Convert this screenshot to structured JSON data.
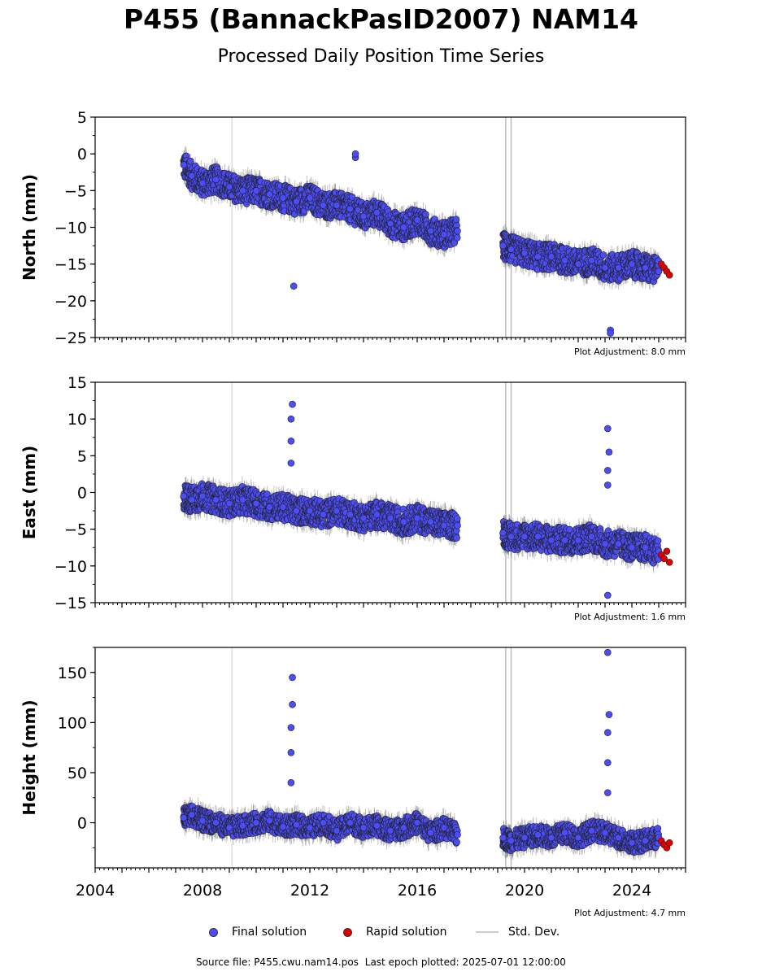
{
  "title": "P455 (BannackPasID2007) NAM14",
  "subtitle": "Processed Daily Position Time Series",
  "legend": {
    "final": "Final solution",
    "rapid": "Rapid solution",
    "stddev": "Std. Dev."
  },
  "colors": {
    "final": "#4c4cff",
    "rapid": "#e00000",
    "stddev": "#bdbdbd"
  },
  "footer": {
    "source": "Source file: P455.cwu.nam14.pos",
    "last_epoch": "Last epoch plotted: 2025-07-01 12:00:00"
  },
  "chart_data": [
    {
      "type": "scatter",
      "ylabel": "North (mm)",
      "xlim": [
        2004.0,
        2026.0
      ],
      "ylim": [
        -25,
        5
      ],
      "yticks": [
        5,
        0,
        -5,
        -10,
        -15,
        -20,
        -25
      ],
      "adjustment": "Plot Adjustment: 8.0 mm",
      "series": [
        {
          "name": "Final solution",
          "x": [
            2007.3,
            2007.6,
            2008.0,
            2008.5,
            2009.0,
            2009.5,
            2010.0,
            2010.5,
            2011.0,
            2011.5,
            2012.0,
            2012.5,
            2013.0,
            2013.5,
            2014.0,
            2014.5,
            2015.0,
            2015.5,
            2016.0,
            2016.5,
            2017.0,
            2017.5,
            2019.2,
            2019.5,
            2020.0,
            2020.5,
            2021.0,
            2021.5,
            2022.0,
            2022.5,
            2023.0,
            2023.5,
            2024.0,
            2024.5,
            2025.0
          ],
          "y": [
            -1.5,
            -3.0,
            -4.0,
            -3.5,
            -4.5,
            -5.0,
            -5.0,
            -5.5,
            -6.0,
            -6.5,
            -6.0,
            -7.0,
            -7.0,
            -7.5,
            -8.5,
            -8.0,
            -9.5,
            -10.0,
            -9.0,
            -10.5,
            -11.0,
            -10.5,
            -12.5,
            -13.0,
            -13.5,
            -14.0,
            -14.0,
            -14.5,
            -15.0,
            -14.5,
            -15.5,
            -15.5,
            -15.0,
            -15.5,
            -16.0
          ]
        },
        {
          "name": "Rapid solution",
          "x": [
            2025.1,
            2025.2,
            2025.3,
            2025.4
          ],
          "y": [
            -15.0,
            -15.5,
            -16.0,
            -16.5
          ]
        }
      ],
      "outliers": {
        "x": [
          2011.4,
          2013.7,
          2013.7,
          2023.2,
          2023.2
        ],
        "y": [
          -18.0,
          -0.5,
          0.0,
          -24.0,
          -24.4
        ]
      }
    },
    {
      "type": "scatter",
      "ylabel": "East (mm)",
      "xlim": [
        2004.0,
        2026.0
      ],
      "ylim": [
        -15,
        15
      ],
      "yticks": [
        15,
        10,
        5,
        0,
        -5,
        -10,
        -15
      ],
      "adjustment": "Plot Adjustment: 1.6 mm",
      "series": [
        {
          "name": "Final solution",
          "x": [
            2007.3,
            2007.6,
            2008.0,
            2008.5,
            2009.0,
            2009.5,
            2010.0,
            2010.5,
            2011.0,
            2011.5,
            2012.0,
            2012.5,
            2013.0,
            2013.5,
            2014.0,
            2014.5,
            2015.0,
            2015.5,
            2016.0,
            2016.5,
            2017.0,
            2017.5,
            2019.2,
            2019.5,
            2020.0,
            2020.5,
            2021.0,
            2021.5,
            2022.0,
            2022.5,
            2023.0,
            2023.5,
            2024.0,
            2024.5,
            2025.0
          ],
          "y": [
            -0.5,
            -1.0,
            -0.5,
            -1.0,
            -1.5,
            -1.0,
            -1.5,
            -2.0,
            -2.0,
            -2.5,
            -2.5,
            -3.0,
            -2.5,
            -3.0,
            -3.5,
            -3.0,
            -3.5,
            -4.0,
            -3.5,
            -4.0,
            -4.5,
            -4.5,
            -5.5,
            -6.0,
            -6.0,
            -6.0,
            -6.5,
            -6.5,
            -6.5,
            -6.0,
            -7.0,
            -7.0,
            -7.5,
            -7.5,
            -8.0
          ]
        },
        {
          "name": "Rapid solution",
          "x": [
            2025.1,
            2025.2,
            2025.3,
            2025.4
          ],
          "y": [
            -8.5,
            -9.0,
            -8.0,
            -9.5
          ]
        }
      ],
      "outliers": {
        "x": [
          2011.3,
          2011.3,
          2011.3,
          2011.35,
          2023.1,
          2023.1,
          2023.15,
          2023.1,
          2023.1
        ],
        "y": [
          4.0,
          7.0,
          10.0,
          12.0,
          1.0,
          3.0,
          5.5,
          8.7,
          -14.0
        ]
      }
    },
    {
      "type": "scatter",
      "ylabel": "Height (mm)",
      "xlim": [
        2004.0,
        2026.0
      ],
      "ylim": [
        -45,
        175
      ],
      "yticks": [
        150,
        100,
        50,
        0
      ],
      "xticks": [
        2004,
        2008,
        2012,
        2016,
        2020,
        2024
      ],
      "adjustment": "Plot Adjustment: 4.7 mm",
      "series": [
        {
          "name": "Final solution",
          "x": [
            2007.3,
            2007.6,
            2008.0,
            2008.5,
            2009.0,
            2009.5,
            2010.0,
            2010.5,
            2011.0,
            2011.5,
            2012.0,
            2012.5,
            2013.0,
            2013.5,
            2014.0,
            2014.5,
            2015.0,
            2015.5,
            2016.0,
            2016.5,
            2017.0,
            2017.5,
            2019.2,
            2019.5,
            2020.0,
            2020.5,
            2021.0,
            2021.5,
            2022.0,
            2022.5,
            2023.0,
            2023.5,
            2024.0,
            2024.5,
            2025.0
          ],
          "y": [
            5,
            8,
            2,
            0,
            -5,
            -3,
            0,
            2,
            -4,
            -2,
            -5,
            0,
            -8,
            0,
            -5,
            -3,
            -8,
            -5,
            0,
            -10,
            -5,
            -12,
            -15,
            -18,
            -15,
            -12,
            -15,
            -10,
            -15,
            -8,
            -10,
            -15,
            -20,
            -18,
            -15
          ]
        },
        {
          "name": "Rapid solution",
          "x": [
            2025.1,
            2025.2,
            2025.3,
            2025.4
          ],
          "y": [
            -18,
            -22,
            -25,
            -20
          ]
        }
      ],
      "outliers": {
        "x": [
          2011.3,
          2011.3,
          2011.3,
          2011.35,
          2011.35,
          2023.1,
          2023.1,
          2023.1,
          2023.15,
          2023.1
        ],
        "y": [
          40,
          70,
          95,
          118,
          145,
          30,
          60,
          90,
          108,
          170
        ]
      }
    }
  ]
}
